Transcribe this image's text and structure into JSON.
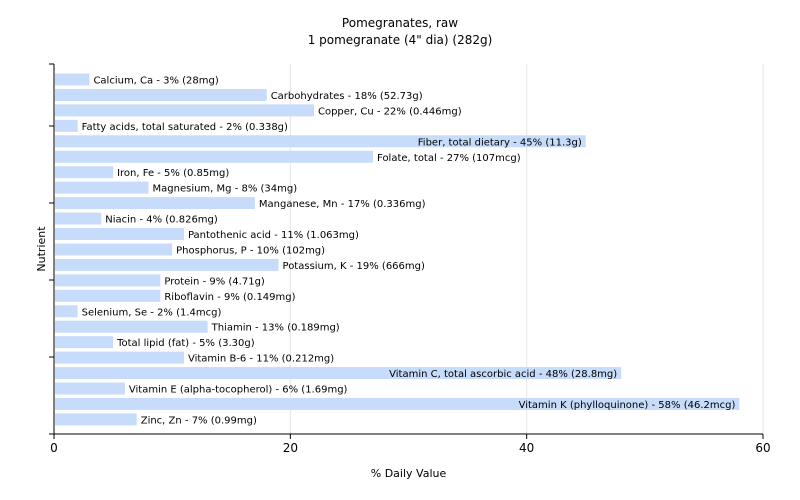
{
  "chart_data": {
    "type": "bar",
    "orientation": "horizontal",
    "title": "Pomegranates, raw",
    "subtitle": "1 pomegranate (4\" dia) (282g)",
    "xlabel": "% Daily Value",
    "ylabel": "Nutrient",
    "xlim": [
      0,
      60
    ],
    "xticks": [
      0,
      20,
      40,
      60
    ],
    "grid": "vertical",
    "bar_color": "#c6dcfa",
    "categories": [
      "Calcium, Ca",
      "Carbohydrates",
      "Copper, Cu",
      "Fatty acids, total saturated",
      "Fiber, total dietary",
      "Folate, total",
      "Iron, Fe",
      "Magnesium, Mg",
      "Manganese, Mn",
      "Niacin",
      "Pantothenic acid",
      "Phosphorus, P",
      "Potassium, K",
      "Protein",
      "Riboflavin",
      "Selenium, Se",
      "Thiamin",
      "Total lipid (fat)",
      "Vitamin B-6",
      "Vitamin C, total ascorbic acid",
      "Vitamin E (alpha-tocopherol)",
      "Vitamin K (phylloquinone)",
      "Zinc, Zn"
    ],
    "values": [
      3,
      18,
      22,
      2,
      45,
      27,
      5,
      8,
      17,
      4,
      11,
      10,
      19,
      9,
      9,
      2,
      13,
      5,
      11,
      48,
      6,
      58,
      7
    ],
    "labels": [
      "Calcium, Ca - 3% (28mg)",
      "Carbohydrates - 18% (52.73g)",
      "Copper, Cu - 22% (0.446mg)",
      "Fatty acids, total saturated - 2% (0.338g)",
      "Fiber, total dietary - 45% (11.3g)",
      "Folate, total - 27% (107mcg)",
      "Iron, Fe - 5% (0.85mg)",
      "Magnesium, Mg - 8% (34mg)",
      "Manganese, Mn - 17% (0.336mg)",
      "Niacin - 4% (0.826mg)",
      "Pantothenic acid - 11% (1.063mg)",
      "Phosphorus, P - 10% (102mg)",
      "Potassium, K - 19% (666mg)",
      "Protein - 9% (4.71g)",
      "Riboflavin - 9% (0.149mg)",
      "Selenium, Se - 2% (1.4mcg)",
      "Thiamin - 13% (0.189mg)",
      "Total lipid (fat) - 5% (3.30g)",
      "Vitamin B-6 - 11% (0.212mg)",
      "Vitamin C, total ascorbic acid - 48% (28.8mg)",
      "Vitamin E (alpha-tocopherol) - 6% (1.69mg)",
      "Vitamin K (phylloquinone) - 58% (46.2mcg)",
      "Zinc, Zn - 7% (0.99mg)"
    ]
  }
}
